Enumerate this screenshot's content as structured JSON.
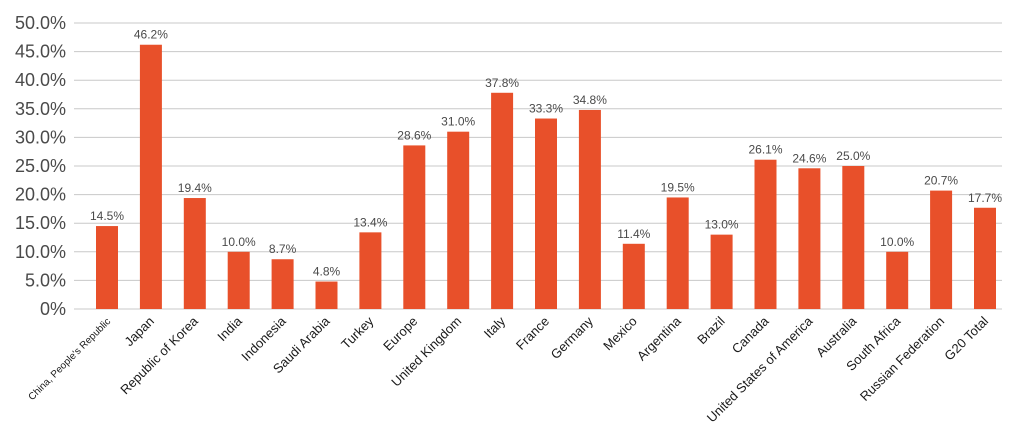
{
  "chart_data": {
    "type": "bar",
    "categories": [
      "China, People's Republic",
      "Japan",
      "Republic of Korea",
      "India",
      "Indonesia",
      "Saudi Arabia",
      "Turkey",
      "Europe",
      "United Kingdom",
      "Italy",
      "France",
      "Germany",
      "Mexico",
      "Argentina",
      "Brazil",
      "Canada",
      "United States of America",
      "Australia",
      "South Africa",
      "Russian Federation",
      "G20 Total"
    ],
    "values": [
      14.5,
      46.2,
      19.4,
      10.0,
      8.7,
      4.8,
      13.4,
      28.6,
      31.0,
      37.8,
      33.3,
      34.8,
      11.4,
      19.5,
      13.0,
      26.1,
      24.6,
      25.0,
      10.0,
      20.7,
      17.7
    ],
    "value_labels": [
      "14.5%",
      "46.2%",
      "19.4%",
      "10.0%",
      "8.7%",
      "4.8%",
      "13.4%",
      "28.6%",
      "31.0%",
      "37.8%",
      "33.3%",
      "34.8%",
      "11.4%",
      "19.5%",
      "13.0%",
      "26.1%",
      "24.6%",
      "25.0%",
      "10.0%",
      "20.7%",
      "17.7%"
    ],
    "yticks": [
      "0%",
      "5.0%",
      "10.0%",
      "15.0%",
      "20.0%",
      "25.0%",
      "30.0%",
      "35.0%",
      "40.0%",
      "45.0%",
      "50.0%"
    ],
    "ylim": [
      0,
      50
    ],
    "grid": true,
    "colors": {
      "bar": "#e8502a",
      "grid": "#c8c8c8",
      "text": "#4a4a4a"
    }
  }
}
